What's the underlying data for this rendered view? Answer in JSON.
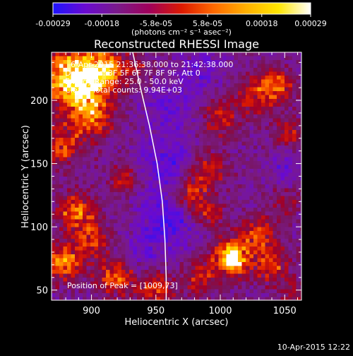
{
  "footer": {
    "date": "10-Apr-2015 12:22"
  },
  "chart_data": {
    "type": "heatmap",
    "title": "Reconstructed RHESSI Image",
    "xlabel": "Heliocentric X (arcsec)",
    "ylabel": "Heliocentric Y (arcsec)",
    "xlim": [
      869,
      1063
    ],
    "ylim": [
      42,
      238
    ],
    "x_ticks": [
      900,
      950,
      1000,
      1050
    ],
    "y_ticks": [
      50,
      100,
      150,
      200
    ],
    "colorbar": {
      "ticks": [
        "-0.00029",
        "-0.00018",
        "-5.8e-05",
        "5.8e-05",
        "0.00018",
        "0.00029"
      ],
      "tick_values": [
        -0.00029,
        -0.00018,
        -5.8e-05,
        5.8e-05,
        0.00018,
        0.00029
      ],
      "range": [
        -0.00029,
        0.00029
      ],
      "unit_label": "(photons cm⁻² s⁻¹ asec⁻²)",
      "colors": [
        "#1e14ff",
        "#6a0ad0",
        "#7a1a8a",
        "#a0005a",
        "#dd1a00",
        "#ff6a00",
        "#ffb000",
        "#ffe600",
        "#ffffff"
      ]
    },
    "annotations": [
      "6-Apr-2015 21:36:38.000 to 21:42:38.000",
      "Detectors: 3F 5F 6F 7F 8F 9F, Att 0",
      "Energy Range: 25.0 - 50.0 keV",
      "Clean.  Total counts: 9.94E+03",
      "Position of Peak = [1009,73]"
    ],
    "peak": [
      1009,
      73
    ],
    "hotspots": [
      {
        "x": 885,
        "y": 222,
        "value": 0.00029,
        "r": 22
      },
      {
        "x": 895,
        "y": 205,
        "value": 0.00024,
        "r": 20
      },
      {
        "x": 912,
        "y": 226,
        "value": 0.00022,
        "r": 14
      },
      {
        "x": 878,
        "y": 165,
        "value": 0.00018,
        "r": 16
      },
      {
        "x": 902,
        "y": 183,
        "value": 0.00014,
        "r": 14
      },
      {
        "x": 925,
        "y": 140,
        "value": 0.00012,
        "r": 12
      },
      {
        "x": 888,
        "y": 112,
        "value": 0.00022,
        "r": 14
      },
      {
        "x": 900,
        "y": 90,
        "value": 0.00016,
        "r": 14
      },
      {
        "x": 878,
        "y": 72,
        "value": 0.00024,
        "r": 14
      },
      {
        "x": 918,
        "y": 60,
        "value": 0.0002,
        "r": 14
      },
      {
        "x": 950,
        "y": 50,
        "value": 0.00016,
        "r": 14
      },
      {
        "x": 935,
        "y": 225,
        "value": 0.0001,
        "r": 12
      },
      {
        "x": 1028,
        "y": 205,
        "value": 0.00016,
        "r": 16
      },
      {
        "x": 1045,
        "y": 212,
        "value": 0.00018,
        "r": 12
      },
      {
        "x": 1000,
        "y": 185,
        "value": 0.00014,
        "r": 14
      },
      {
        "x": 1052,
        "y": 175,
        "value": 0.00012,
        "r": 12
      },
      {
        "x": 990,
        "y": 145,
        "value": 0.00014,
        "r": 14
      },
      {
        "x": 975,
        "y": 125,
        "value": 0.00016,
        "r": 14
      },
      {
        "x": 990,
        "y": 112,
        "value": 0.00014,
        "r": 12
      },
      {
        "x": 1030,
        "y": 95,
        "value": 0.00014,
        "r": 14
      },
      {
        "x": 1010,
        "y": 78,
        "value": 0.00022,
        "r": 16
      },
      {
        "x": 1009,
        "y": 73,
        "value": 0.00029,
        "r": 8
      },
      {
        "x": 1040,
        "y": 70,
        "value": 0.00016,
        "r": 14
      },
      {
        "x": 985,
        "y": 60,
        "value": 0.00014,
        "r": 14
      },
      {
        "x": 1058,
        "y": 48,
        "value": 0.0001,
        "r": 12
      },
      {
        "x": 1050,
        "y": 120,
        "value": 0.0001,
        "r": 12
      }
    ],
    "coldspots": [
      {
        "x": 960,
        "y": 105,
        "value": -0.00016,
        "r": 22
      },
      {
        "x": 958,
        "y": 150,
        "value": -0.00012,
        "r": 20
      },
      {
        "x": 960,
        "y": 195,
        "value": -0.0001,
        "r": 20
      },
      {
        "x": 985,
        "y": 225,
        "value": -0.0001,
        "r": 16
      },
      {
        "x": 1050,
        "y": 145,
        "value": -8e-05,
        "r": 14
      },
      {
        "x": 940,
        "y": 80,
        "value": -6e-05,
        "r": 14
      }
    ],
    "limb_arc": [
      [
        932,
        238
      ],
      [
        938,
        210
      ],
      [
        945,
        180
      ],
      [
        951,
        150
      ],
      [
        955,
        120
      ],
      [
        957,
        90
      ],
      [
        958,
        60
      ],
      [
        958,
        42
      ]
    ]
  }
}
